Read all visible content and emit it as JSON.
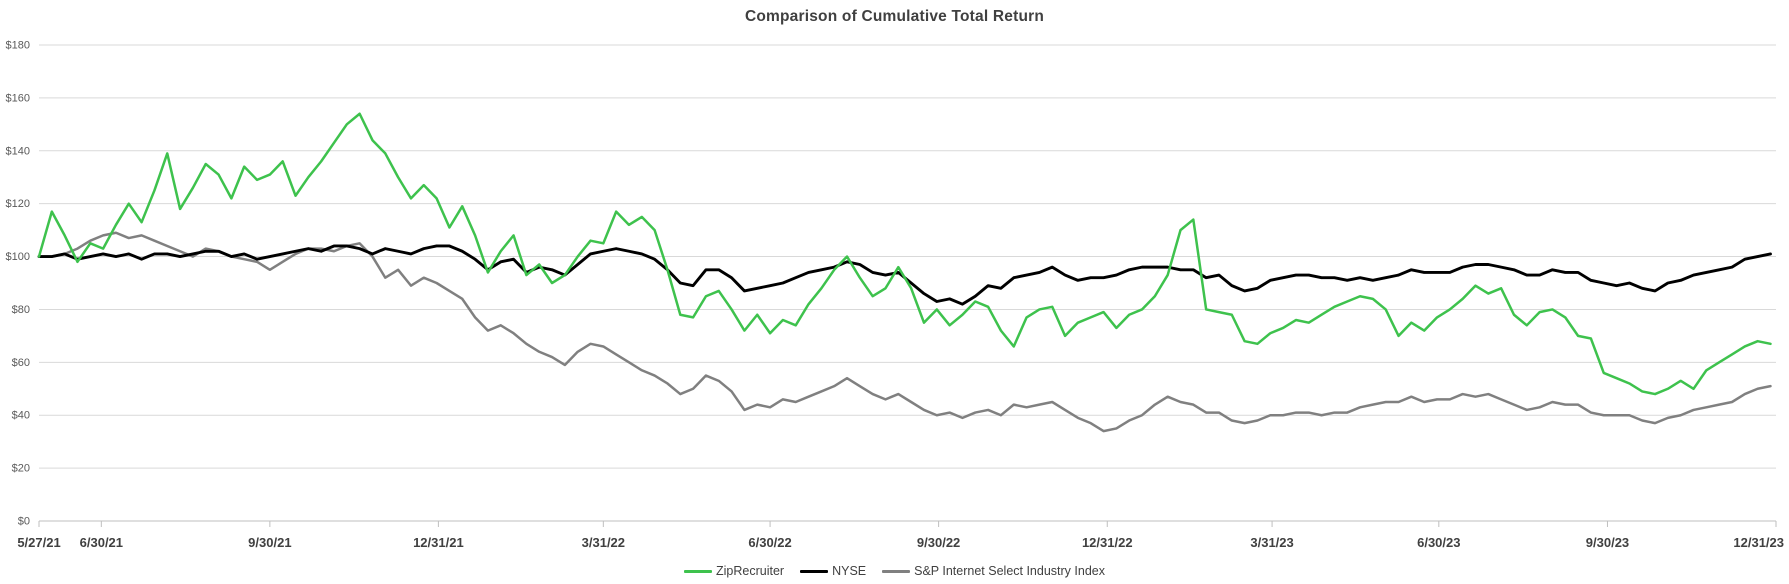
{
  "chart_data": {
    "type": "line",
    "title": "Comparison of Cumulative Total Return",
    "x_axis": {
      "unit": "weeks since 5/27/2021",
      "tick_labels": [
        "5/27/21",
        "6/30/21",
        "9/30/21",
        "12/31/21",
        "3/31/22",
        "6/30/22",
        "9/30/22",
        "12/31/22",
        "3/31/23",
        "6/30/23",
        "9/30/23",
        "12/31/23"
      ],
      "tick_positions_weeks": [
        0,
        4.86,
        18,
        31.14,
        44,
        57,
        70.14,
        83.29,
        96.14,
        109.14,
        122.29,
        135.43
      ],
      "max_weeks": 135.43
    },
    "y_axis": {
      "tick_labels": [
        "$0",
        "$20",
        "$40",
        "$60",
        "$80",
        "$100",
        "$120",
        "$140",
        "$160",
        "$180"
      ],
      "tick_values": [
        0,
        20,
        40,
        60,
        80,
        100,
        120,
        140,
        160,
        180
      ],
      "min": 0,
      "max": 180
    },
    "grid": "horizontal",
    "legend_position": "bottom",
    "colors": {
      "gridline": "#D9D9D9",
      "axis_line": "#BFBFBF",
      "title": "#404040",
      "y_label": "#595959",
      "x_label": "#404040",
      "legend_text": "#404040"
    },
    "series": [
      {
        "name": "S&P Internet Select Industry Index",
        "color": "#808080",
        "line_width": 2.5,
        "values": [
          100,
          100,
          101,
          103,
          106,
          108,
          109,
          107,
          108,
          106,
          104,
          102,
          100,
          103,
          102,
          100,
          99,
          98,
          95,
          98,
          101,
          103,
          103,
          102,
          104,
          105,
          100,
          92,
          95,
          89,
          92,
          90,
          87,
          84,
          77,
          72,
          74,
          71,
          67,
          64,
          62,
          59,
          64,
          67,
          66,
          63,
          60,
          57,
          55,
          52,
          48,
          50,
          55,
          53,
          49,
          42,
          44,
          43,
          46,
          45,
          47,
          49,
          51,
          54,
          51,
          48,
          46,
          48,
          45,
          42,
          40,
          41,
          39,
          41,
          42,
          40,
          44,
          43,
          44,
          45,
          42,
          39,
          37,
          34,
          35,
          38,
          40,
          44,
          47,
          45,
          44,
          41,
          41,
          38,
          37,
          38,
          40,
          40,
          41,
          41,
          40,
          41,
          41,
          43,
          44,
          45,
          45,
          47,
          45,
          46,
          46,
          48,
          47,
          48,
          46,
          44,
          42,
          43,
          45,
          44,
          44,
          41,
          40,
          40,
          40,
          38,
          37,
          39,
          40,
          42,
          43,
          44,
          45,
          48,
          50,
          51
        ]
      },
      {
        "name": "NYSE",
        "color": "#000000",
        "line_width": 2.9,
        "values": [
          100,
          100,
          101,
          99,
          100,
          101,
          100,
          101,
          99,
          101,
          101,
          100,
          101,
          102,
          102,
          100,
          101,
          99,
          100,
          101,
          102,
          103,
          102,
          104,
          104,
          103,
          101,
          103,
          102,
          101,
          103,
          104,
          104,
          102,
          99,
          95,
          98,
          99,
          94,
          96,
          95,
          93,
          97,
          101,
          102,
          103,
          102,
          101,
          99,
          95,
          90,
          89,
          95,
          95,
          92,
          87,
          88,
          89,
          90,
          92,
          94,
          95,
          96,
          98,
          97,
          94,
          93,
          94,
          90,
          86,
          83,
          84,
          82,
          85,
          89,
          88,
          92,
          93,
          94,
          96,
          93,
          91,
          92,
          92,
          93,
          95,
          96,
          96,
          96,
          95,
          95,
          92,
          93,
          89,
          87,
          88,
          91,
          92,
          93,
          93,
          92,
          92,
          91,
          92,
          91,
          92,
          93,
          95,
          94,
          94,
          94,
          96,
          97,
          97,
          96,
          95,
          93,
          93,
          95,
          94,
          94,
          91,
          90,
          89,
          90,
          88,
          87,
          90,
          91,
          93,
          94,
          95,
          96,
          99,
          100,
          101
        ]
      },
      {
        "name": "ZipRecruiter",
        "color": "#3EC24D",
        "line_width": 2.5,
        "values": [
          100,
          117,
          108,
          98,
          105,
          103,
          112,
          120,
          113,
          125,
          139,
          118,
          126,
          135,
          131,
          122,
          134,
          129,
          131,
          136,
          123,
          130,
          136,
          143,
          150,
          154,
          144,
          139,
          130,
          122,
          127,
          122,
          111,
          119,
          108,
          94,
          102,
          108,
          93,
          97,
          90,
          93,
          100,
          106,
          105,
          117,
          112,
          115,
          110,
          95,
          78,
          77,
          85,
          87,
          80,
          72,
          78,
          71,
          76,
          74,
          82,
          88,
          95,
          100,
          92,
          85,
          88,
          96,
          88,
          75,
          80,
          74,
          78,
          83,
          81,
          72,
          66,
          77,
          80,
          81,
          70,
          75,
          77,
          79,
          73,
          78,
          80,
          85,
          93,
          110,
          114,
          80,
          79,
          78,
          68,
          67,
          71,
          73,
          76,
          75,
          78,
          81,
          83,
          85,
          84,
          80,
          70,
          75,
          72,
          77,
          80,
          84,
          89,
          86,
          88,
          78,
          74,
          79,
          80,
          77,
          70,
          69,
          56,
          54,
          52,
          49,
          48,
          50,
          53,
          50,
          57,
          60,
          63,
          66,
          68,
          67
        ]
      }
    ],
    "legend_order": [
      "ZipRecruiter",
      "NYSE",
      "S&P Internet Select Industry Index"
    ]
  }
}
